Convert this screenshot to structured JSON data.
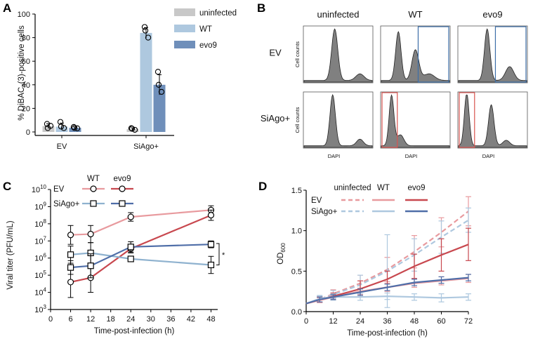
{
  "panels": {
    "a": "A",
    "b": "B",
    "c": "C",
    "d": "D"
  },
  "chart_data": [
    {
      "id": "panelA",
      "type": "bar",
      "ylabel": "% DiBAC4(3)-positive cells",
      "ylabel_parts": {
        "pre": "% DiBAC",
        "sub": "4",
        "post": "(3)-positive cells"
      },
      "ylim": [
        0,
        100
      ],
      "yticks": [
        "0",
        "20",
        "40",
        "60",
        "80",
        "100"
      ],
      "categories": [
        "EV",
        "SiAgo+"
      ],
      "series": [
        {
          "name": "uninfected",
          "color": "#c8c8c8",
          "values": [
            5,
            2.5
          ],
          "errors": [
            2.0,
            1.0
          ],
          "points": [
            [
              6.8,
              5.2,
              3.3
            ],
            [
              3.2,
              1.8,
              2.8
            ]
          ]
        },
        {
          "name": "WT",
          "color": "#aec8df",
          "values": [
            4.5,
            84
          ],
          "errors": [
            3.0,
            4.5
          ],
          "points": [
            [
              8.5,
              3.3,
              4.6
            ],
            [
              89,
              80,
              86
            ]
          ]
        },
        {
          "name": "evo9",
          "color": "#6f8fba",
          "values": [
            3.5,
            40
          ],
          "errors": [
            0.8,
            8.5
          ],
          "points": [
            [
              4.2,
              3.1,
              3.4
            ],
            [
              51,
              34,
              40
            ]
          ]
        }
      ]
    },
    {
      "id": "panelB",
      "type": "histogram-grid",
      "columns": [
        "uninfected",
        "WT",
        "evo9"
      ],
      "rows": [
        "EV",
        "SiAgo+"
      ],
      "ylabel": "Cell counts",
      "xlabel": "DAPI",
      "gate_colors": {
        "EV": "#3c6ea8",
        "SiAgo+": "#d9534f"
      }
    },
    {
      "id": "panelC",
      "type": "line",
      "xlabel": "Time-post-infection (h)",
      "ylabel": "Viral titer (PFU/mL)",
      "xticks": [
        "0",
        "6",
        "12",
        "18",
        "24",
        "30",
        "36",
        "42",
        "48"
      ],
      "xlim": [
        0,
        50
      ],
      "ylim_log10": [
        3,
        10
      ],
      "ytick_base": "10",
      "ytick_exps": [
        "3",
        "4",
        "5",
        "6",
        "7",
        "8",
        "9",
        "10"
      ],
      "legend": {
        "col_wt": "WT",
        "col_evo9": "evo9",
        "row_ev": "EV",
        "row_siago": "SiAgo+"
      },
      "significance": "*",
      "series": [
        {
          "name": "EV WT",
          "color": "#e89a9e",
          "marker": "circle",
          "x": [
            6,
            12,
            24,
            48
          ],
          "y_log10": [
            7.35,
            7.4,
            8.4,
            8.8
          ],
          "err_log10": [
            0.55,
            0.5,
            0.25,
            0.25
          ]
        },
        {
          "name": "EV evo9",
          "color": "#c8484f",
          "marker": "circle",
          "x": [
            6,
            12,
            24,
            48
          ],
          "y_log10": [
            4.6,
            4.85,
            6.55,
            8.5
          ],
          "err_log10": [
            0.9,
            0.85,
            0.25,
            0.3
          ]
        },
        {
          "name": "SiAgo+ WT",
          "color": "#8fb2cf",
          "marker": "square",
          "x": [
            6,
            12,
            24,
            48
          ],
          "y_log10": [
            6.2,
            6.3,
            5.95,
            5.6
          ],
          "err_log10": [
            0.5,
            0.6,
            0.15,
            0.5
          ]
        },
        {
          "name": "SiAgo+ evo9",
          "color": "#4f6ea8",
          "marker": "square",
          "x": [
            6,
            12,
            24,
            48
          ],
          "y_log10": [
            5.45,
            5.55,
            6.65,
            6.8
          ],
          "err_log10": [
            0.4,
            0.7,
            0.3,
            0.2
          ]
        }
      ]
    },
    {
      "id": "panelD",
      "type": "line",
      "xlabel": "Time-post-infection (h)",
      "ylabel": "OD600",
      "ylabel_parts": {
        "pre": "OD",
        "sub": "600"
      },
      "xticks": [
        "0",
        "12",
        "24",
        "36",
        "48",
        "60",
        "72"
      ],
      "xlim": [
        0,
        72
      ],
      "yticks": [
        "0.0",
        "0.5",
        "1.0",
        "1.5"
      ],
      "ylim": [
        0,
        1.5
      ],
      "legend": {
        "col_uninfected": "uninfected",
        "col_wt": "WT",
        "col_evo9": "evo9",
        "row_ev": "EV",
        "row_siago": "SiAgo+"
      },
      "x": [
        0,
        6,
        12,
        24,
        36,
        48,
        60,
        72
      ],
      "series": [
        {
          "name": "EV uninfected",
          "color": "#e89a9e",
          "dash": true,
          "values": [
            0.1,
            0.15,
            0.22,
            0.35,
            0.52,
            0.74,
            0.98,
            1.24
          ],
          "errors": [
            0.02,
            0.04,
            0.05,
            0.1,
            0.15,
            0.2,
            0.18,
            0.18
          ]
        },
        {
          "name": "SiAgo+ uninfected",
          "color": "#aec8df",
          "dash": true,
          "values": [
            0.1,
            0.15,
            0.21,
            0.33,
            0.5,
            0.7,
            0.92,
            1.13
          ],
          "errors": [
            0.02,
            0.04,
            0.05,
            0.12,
            0.45,
            0.2,
            0.2,
            0.15
          ]
        },
        {
          "name": "EV WT",
          "color": "#e89a9e",
          "dash": false,
          "values": [
            0.1,
            0.14,
            0.18,
            0.25,
            0.3,
            0.35,
            0.38,
            0.41
          ],
          "errors": [
            0.02,
            0.03,
            0.03,
            0.04,
            0.05,
            0.05,
            0.05,
            0.05
          ]
        },
        {
          "name": "EV evo9",
          "color": "#c8484f",
          "dash": false,
          "values": [
            0.1,
            0.15,
            0.19,
            0.28,
            0.4,
            0.56,
            0.7,
            0.83
          ],
          "errors": [
            0.02,
            0.03,
            0.04,
            0.1,
            0.1,
            0.15,
            0.2,
            0.2
          ]
        },
        {
          "name": "SiAgo+ WT",
          "color": "#aec8df",
          "dash": false,
          "values": [
            0.1,
            0.16,
            0.18,
            0.18,
            0.19,
            0.18,
            0.17,
            0.18
          ],
          "errors": [
            0.02,
            0.04,
            0.04,
            0.04,
            0.04,
            0.04,
            0.05,
            0.04
          ]
        },
        {
          "name": "SiAgo+ evo9",
          "color": "#4f6ea8",
          "dash": false,
          "values": [
            0.1,
            0.15,
            0.18,
            0.24,
            0.3,
            0.36,
            0.39,
            0.42
          ],
          "errors": [
            0.02,
            0.03,
            0.03,
            0.04,
            0.04,
            0.04,
            0.04,
            0.04
          ]
        }
      ]
    }
  ]
}
